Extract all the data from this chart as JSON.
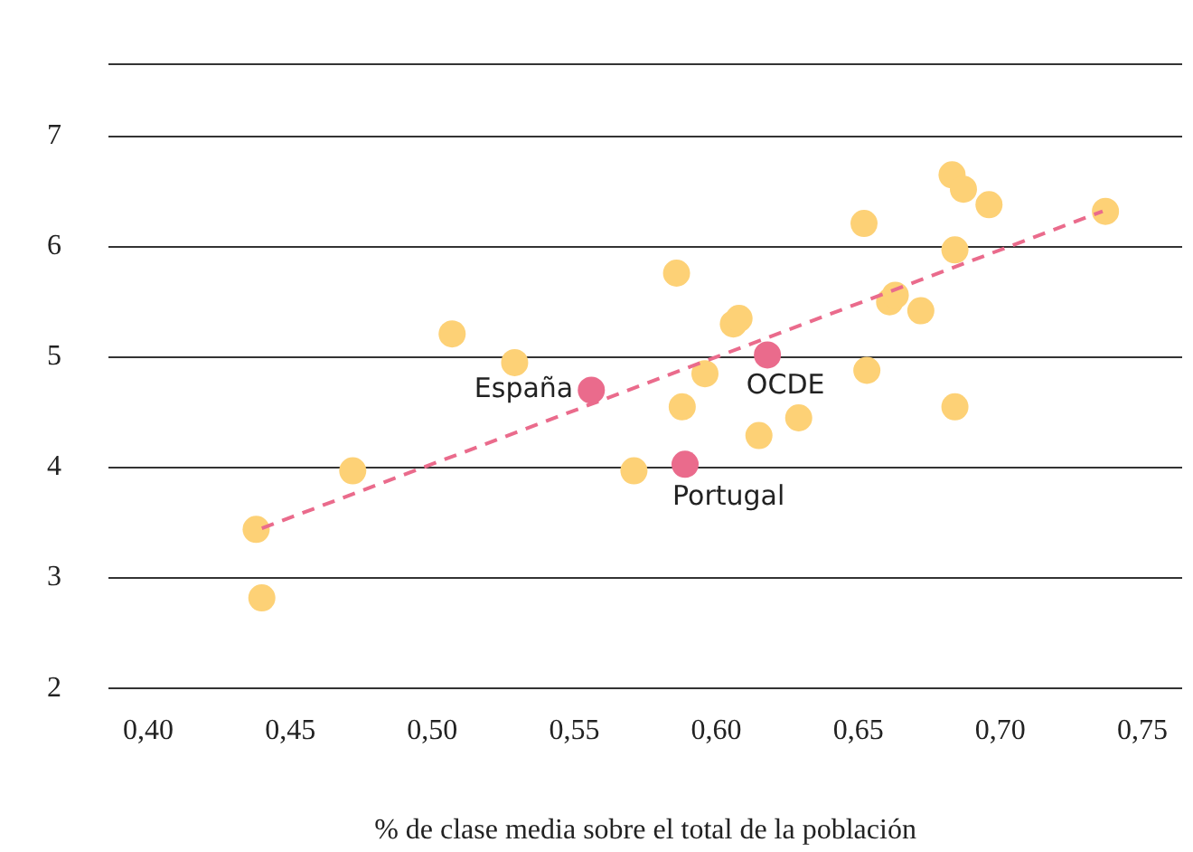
{
  "chart_data": {
    "type": "scatter",
    "xlabel": "% de clase media sobre el total de la población",
    "xlim": [
      0.386,
      0.764
    ],
    "xticks": [
      {
        "value": 0.4,
        "label": "0,40"
      },
      {
        "value": 0.45,
        "label": "0,45"
      },
      {
        "value": 0.5,
        "label": "0,50"
      },
      {
        "value": 0.55,
        "label": "0,55"
      },
      {
        "value": 0.6,
        "label": "0,60"
      },
      {
        "value": 0.65,
        "label": "0,65"
      },
      {
        "value": 0.7,
        "label": "0,70"
      },
      {
        "value": 0.75,
        "label": "0,75"
      }
    ],
    "ylim": [
      2,
      7.65
    ],
    "yticks": [
      2,
      3,
      4,
      5,
      6,
      7,
      {
        "value": 7.65,
        "label": null
      }
    ],
    "grid": "y",
    "legend": false,
    "marker": "circle",
    "series": [
      {
        "color": "#fdd176",
        "x": [
          0.438,
          0.44,
          0.472,
          0.507,
          0.529,
          0.571,
          0.586,
          0.588,
          0.596,
          0.606,
          0.608,
          0.615,
          0.629,
          0.652,
          0.653,
          0.661,
          0.663,
          0.672,
          0.683,
          0.687,
          0.684,
          0.684,
          0.696,
          0.737
        ],
        "values": [
          3.44,
          2.82,
          3.97,
          5.21,
          4.95,
          3.97,
          5.76,
          4.55,
          4.85,
          5.3,
          5.35,
          4.29,
          4.45,
          6.21,
          4.88,
          5.5,
          5.56,
          5.42,
          6.65,
          6.52,
          5.97,
          4.55,
          6.38,
          6.32
        ]
      },
      {
        "color": "#ea6b8c",
        "x": [
          0.556,
          0.618,
          0.589
        ],
        "values": [
          4.7,
          5.02,
          4.03
        ]
      },
      {
        "type": "line",
        "color": "#ea6b8c",
        "line_style": "dashed",
        "marker": "none",
        "x": [
          0.44,
          0.736
        ],
        "values": [
          3.45,
          6.32
        ]
      }
    ],
    "annotations": [
      {
        "text": "España",
        "x": 0.556,
        "y": 4.7
      },
      {
        "text": "OCDE",
        "x": 0.618,
        "y": 5.02
      },
      {
        "text": "Portugal",
        "x": 0.589,
        "y": 4.03
      }
    ]
  }
}
